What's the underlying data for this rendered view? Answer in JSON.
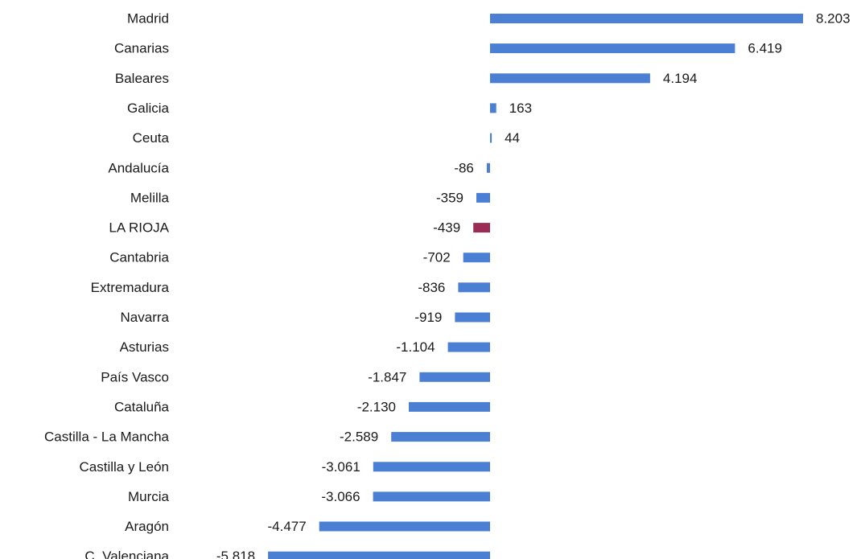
{
  "chart_data": {
    "type": "bar",
    "orientation": "horizontal",
    "title": "",
    "xlabel": "",
    "ylabel": "",
    "grid": false,
    "legend": "none",
    "colors": {
      "default": "#4a7fd4",
      "highlight": "#9b2d55"
    },
    "categories": [
      "Madrid",
      "Canarias",
      "Baleares",
      "Galicia",
      "Ceuta",
      "Andalucía",
      "Melilla",
      "LA RIOJA",
      "Cantabria",
      "Extremadura",
      "Navarra",
      "Asturias",
      "País Vasco",
      "Cataluña",
      "Castilla - La Mancha",
      "Castilla y León",
      "Murcia",
      "Aragón",
      "C. Valenciana"
    ],
    "values": [
      8203,
      6419,
      4194,
      163,
      44,
      -86,
      -359,
      -439,
      -702,
      -836,
      -919,
      -1104,
      -1847,
      -2130,
      -2589,
      -3061,
      -3066,
      -4477,
      -5818
    ],
    "value_labels": [
      "8.203",
      "6.419",
      "4.194",
      "163",
      "44",
      "-86",
      "-359",
      "-439",
      "-702",
      "-836",
      "-919",
      "-1.104",
      "-1.847",
      "-2.130",
      "-2.589",
      "-3.061",
      "-3.066",
      "-4.477",
      "-5.818"
    ],
    "highlight_category": "LA RIOJA",
    "xlim": [
      -5818,
      8203
    ]
  }
}
